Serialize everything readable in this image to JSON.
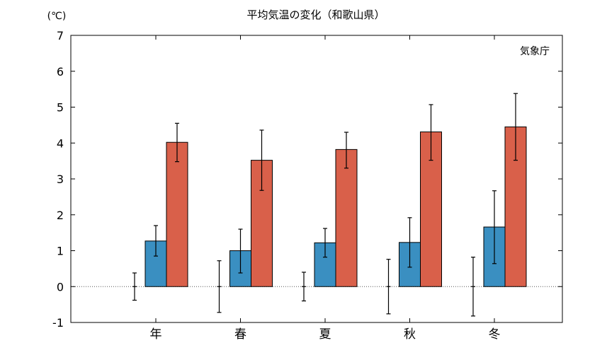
{
  "chart_data": {
    "type": "bar",
    "title": "平均気温の変化（和歌山県）",
    "unit_label": "(℃)",
    "credit": "気象庁",
    "categories": [
      "年",
      "春",
      "夏",
      "秋",
      "冬"
    ],
    "ylim": [
      -1,
      7
    ],
    "yticks": [
      "-1",
      "0",
      "1",
      "2",
      "3",
      "4",
      "5",
      "6",
      "7"
    ],
    "grid": false,
    "series": [
      {
        "values": [
          0,
          0,
          0,
          0,
          0
        ],
        "err_low": [
          -0.38,
          -0.72,
          -0.4,
          -0.76,
          -0.82
        ],
        "err_high": [
          0.38,
          0.72,
          0.4,
          0.76,
          0.82
        ],
        "color": "none",
        "bar_visible": false
      },
      {
        "values": [
          1.27,
          1.0,
          1.22,
          1.23,
          1.66
        ],
        "err_low": [
          0.85,
          0.38,
          0.82,
          0.54,
          0.64
        ],
        "err_high": [
          1.7,
          1.6,
          1.62,
          1.92,
          2.67
        ],
        "color": "#3a8fc1"
      },
      {
        "values": [
          4.02,
          3.52,
          3.82,
          4.31,
          4.45
        ],
        "err_low": [
          3.48,
          2.68,
          3.3,
          3.52,
          3.52
        ],
        "err_high": [
          4.55,
          4.36,
          4.3,
          5.07,
          5.38
        ],
        "color": "#d9604a"
      }
    ]
  }
}
